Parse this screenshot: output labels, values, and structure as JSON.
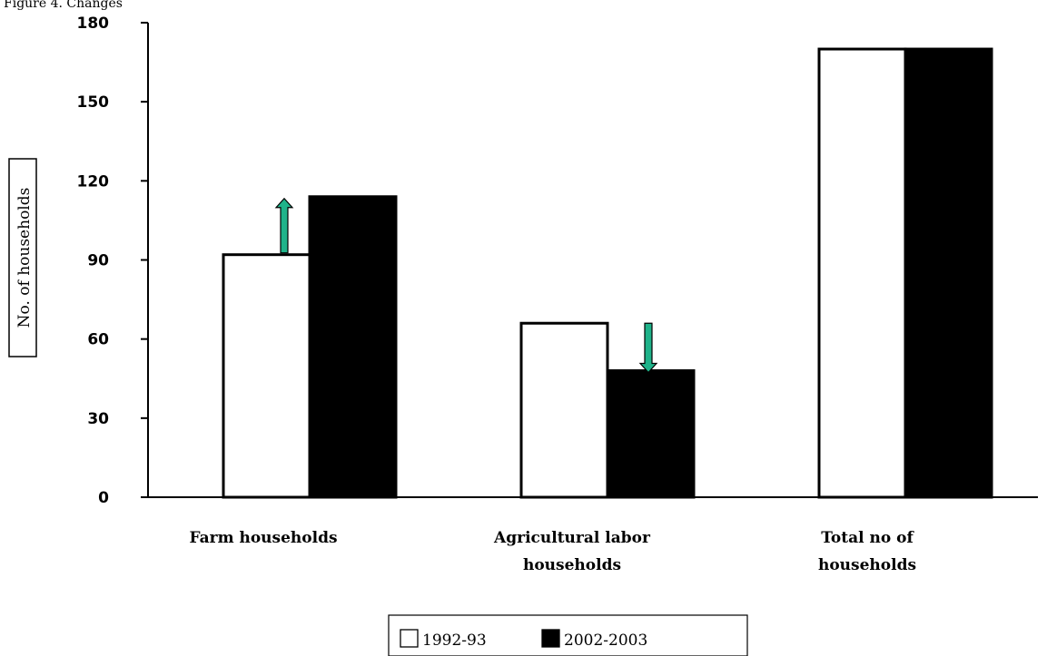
{
  "header_text": "Figure 4. Changes",
  "chart_data": {
    "type": "bar",
    "title": "",
    "xlabel": "",
    "ylabel": "No. of households",
    "ylim": [
      0,
      180
    ],
    "yticks": [
      0,
      30,
      60,
      90,
      120,
      150,
      180
    ],
    "grid": false,
    "legend_position": "bottom",
    "categories": [
      [
        "Farm households"
      ],
      [
        "Agricultural labor",
        "households"
      ],
      [
        "Total no of",
        "households"
      ]
    ],
    "series": [
      {
        "name": "1992-93",
        "values": [
          92,
          66,
          170
        ],
        "color": "#ffffff"
      },
      {
        "name": "2002-2003",
        "values": [
          114,
          48,
          170
        ],
        "color": "#000000"
      }
    ],
    "annotations": [
      {
        "category": "Farm households",
        "type": "arrow",
        "direction": "up",
        "color": "#1fb38a"
      },
      {
        "category": "Agricultural labor households",
        "type": "arrow",
        "direction": "down",
        "color": "#1fb38a"
      }
    ]
  }
}
